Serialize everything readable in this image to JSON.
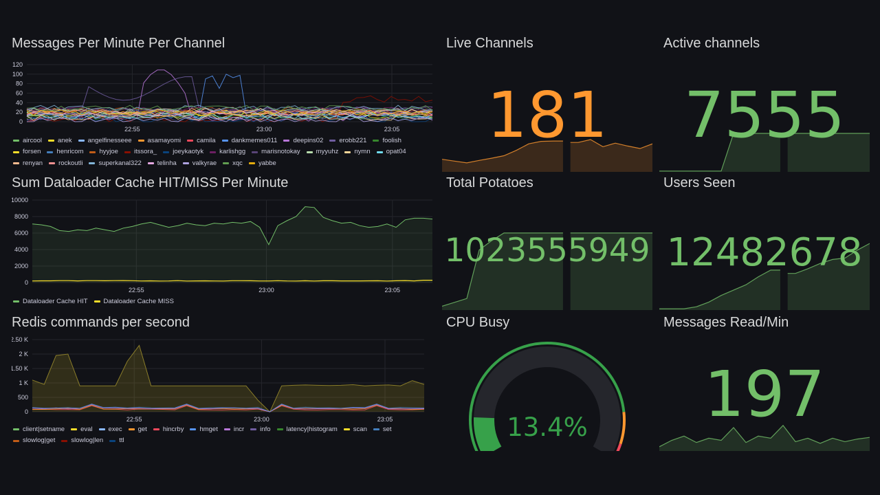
{
  "panels": {
    "messages": {
      "title": "Messages Per Minute Per Channel",
      "yticks": [
        "120",
        "100",
        "80",
        "60",
        "40",
        "20",
        "0"
      ],
      "xticks": [
        "22:55",
        "23:00",
        "23:05"
      ],
      "legend": [
        {
          "name": "aircool",
          "color": "#73bf69"
        },
        {
          "name": "anek",
          "color": "#fade2a"
        },
        {
          "name": "angelfinesseee",
          "color": "#8ab8ff"
        },
        {
          "name": "asamayomi",
          "color": "#ff9830"
        },
        {
          "name": "camila",
          "color": "#f2495c"
        },
        {
          "name": "dankmemes011",
          "color": "#5794f2"
        },
        {
          "name": "deepins02",
          "color": "#b877d9"
        },
        {
          "name": "erobb221",
          "color": "#705da0"
        },
        {
          "name": "foolish",
          "color": "#37872d"
        },
        {
          "name": "forsen",
          "color": "#fade2a"
        },
        {
          "name": "henricom",
          "color": "#447ebc"
        },
        {
          "name": "hyyjoe",
          "color": "#c15c17"
        },
        {
          "name": "itssora_",
          "color": "#890f02"
        },
        {
          "name": "joeykaotyk",
          "color": "#0a437c"
        },
        {
          "name": "karlishgg",
          "color": "#6d1f62"
        },
        {
          "name": "marisnotokay",
          "color": "#584477"
        },
        {
          "name": "myyuhz",
          "color": "#b7dbab"
        },
        {
          "name": "nymn",
          "color": "#f4d598"
        },
        {
          "name": "opat04",
          "color": "#70dbed"
        },
        {
          "name": "renyan",
          "color": "#f9ba8f"
        },
        {
          "name": "rockoutli",
          "color": "#f29191"
        },
        {
          "name": "superkanal322",
          "color": "#82b5d8"
        },
        {
          "name": "telinha",
          "color": "#e5a8e2"
        },
        {
          "name": "valkyrae",
          "color": "#aea2e0"
        },
        {
          "name": "xqc",
          "color": "#629e51"
        },
        {
          "name": "yabbe",
          "color": "#e5ac0e"
        }
      ]
    },
    "cache": {
      "title": "Sum Dataloader Cache HIT/MISS Per Minute",
      "yticks": [
        "10000",
        "8000",
        "6000",
        "4000",
        "2000",
        "0"
      ],
      "xticks": [
        "22:55",
        "23:00",
        "23:05"
      ],
      "legend": [
        {
          "name": "Dataloader Cache HIT",
          "color": "#73bf69"
        },
        {
          "name": "Dataloader Cache MISS",
          "color": "#fade2a"
        }
      ]
    },
    "redis": {
      "title": "Redis commands per second",
      "yticks": [
        "2.50 K",
        "2 K",
        "1.50 K",
        "1 K",
        "500",
        "0"
      ],
      "xticks": [
        "22:55",
        "23:00",
        "23:05"
      ],
      "legend": [
        {
          "name": "client|setname",
          "color": "#73bf69"
        },
        {
          "name": "eval",
          "color": "#fade2a"
        },
        {
          "name": "exec",
          "color": "#8ab8ff"
        },
        {
          "name": "get",
          "color": "#ff9830"
        },
        {
          "name": "hincrby",
          "color": "#f2495c"
        },
        {
          "name": "hmget",
          "color": "#5794f2"
        },
        {
          "name": "incr",
          "color": "#b877d9"
        },
        {
          "name": "info",
          "color": "#705da0"
        },
        {
          "name": "latency|histogram",
          "color": "#37872d"
        },
        {
          "name": "scan",
          "color": "#fade2a"
        },
        {
          "name": "set",
          "color": "#447ebc"
        },
        {
          "name": "slowlog|get",
          "color": "#c15c17"
        },
        {
          "name": "slowlog|len",
          "color": "#890f02"
        },
        {
          "name": "ttl",
          "color": "#0a437c"
        }
      ]
    },
    "live_channels": {
      "title": "Live Channels",
      "value": "181",
      "color": "#ff9830",
      "spark": [
        0.35,
        0.3,
        0.25,
        0.32,
        0.38,
        0.45,
        0.6,
        0.78,
        0.85,
        0.86,
        0.78,
        0.82,
        0.9,
        0.7,
        0.8,
        0.72,
        0.65,
        0.78
      ]
    },
    "active_channels": {
      "title": "Active channels",
      "value": "7555",
      "color": "#73bf69",
      "spark": [
        0.02,
        0.02,
        0.02,
        0.02,
        0.02,
        0.02,
        0.95,
        0.95,
        0.95,
        0.95,
        0.95,
        0.95,
        0.95,
        0.95,
        0.95,
        0.95,
        0.95,
        0.95
      ]
    },
    "total_potatoes": {
      "title": "Total Potatoes",
      "value": "1023555949",
      "color": "#73bf69",
      "spark": [
        0.05,
        0.1,
        0.15,
        0.78,
        0.9,
        1.0,
        1.0,
        1.0,
        1.0,
        1.0,
        1.0,
        1.0,
        1.0,
        1.0,
        1.0,
        1.0,
        1.0,
        1.0
      ]
    },
    "users_seen": {
      "title": "Users Seen",
      "value": "12482678",
      "color": "#73bf69",
      "spark": [
        0.02,
        0.02,
        0.02,
        0.05,
        0.12,
        0.22,
        0.3,
        0.38,
        0.5,
        0.6,
        0.48,
        0.55,
        0.62,
        0.7,
        0.76,
        0.78,
        0.9,
        1.0
      ]
    },
    "cpu_busy": {
      "title": "CPU Busy",
      "value_text": "13.4%",
      "percent": 13.4,
      "color": "#37a14a",
      "thresholds": {
        "orange": 85,
        "red": 95
      }
    },
    "messages_read": {
      "title": "Messages Read/Min",
      "value": "197",
      "color": "#73bf69",
      "spark": [
        0.1,
        0.25,
        0.35,
        0.2,
        0.3,
        0.25,
        0.55,
        0.2,
        0.35,
        0.3,
        0.6,
        0.22,
        0.3,
        0.18,
        0.3,
        0.22,
        0.28,
        0.32
      ]
    }
  }
}
